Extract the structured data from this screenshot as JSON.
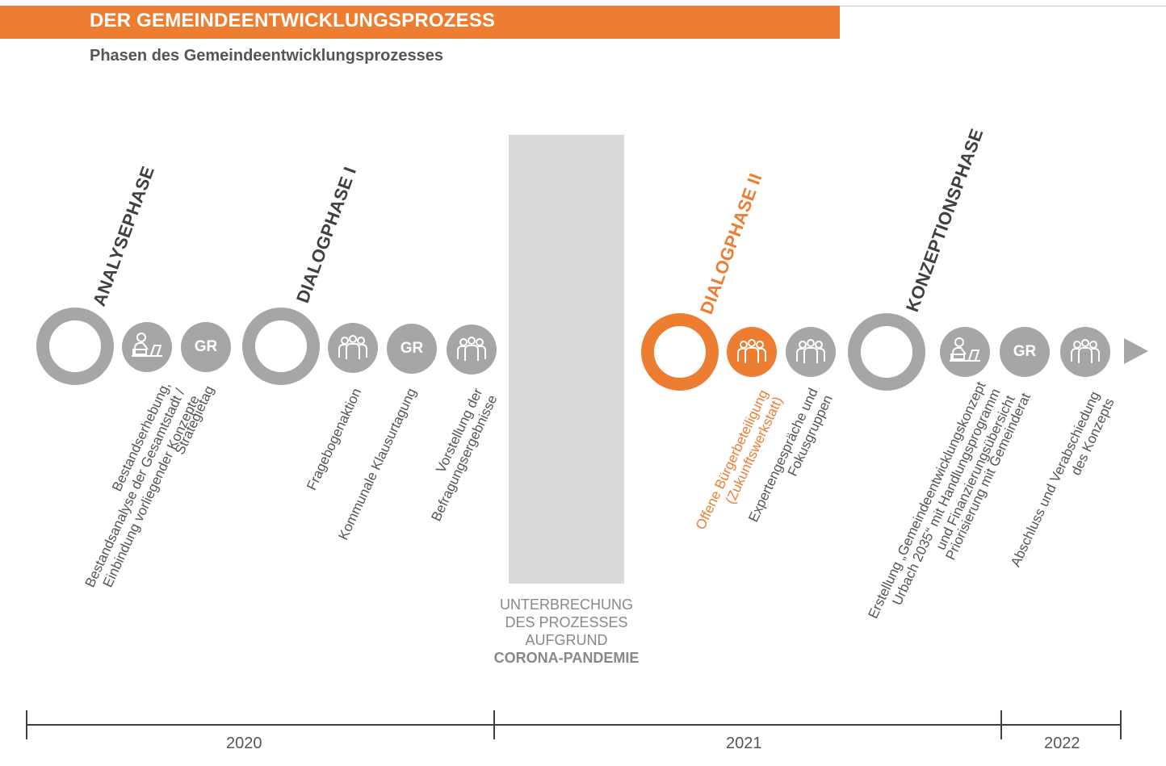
{
  "header": {
    "title": "DER GEMEINDEENTWICKLUNGSPROZESS",
    "subtitle": "Phasen des Gemeindeentwicklungsprozesses"
  },
  "colors": {
    "accent": "#ed7d31",
    "neutral": "#a6a6a6",
    "pause": "#d9d9d9"
  },
  "phases": [
    {
      "label": "ANALYSEPHASE",
      "highlight": false
    },
    {
      "label": "DIALOGPHASE I",
      "highlight": false
    },
    {
      "label": "DIALOGPHASE II",
      "highlight": true
    },
    {
      "label": "KONZEPTIONSPHASE",
      "highlight": false
    }
  ],
  "steps": [
    {
      "icon": "desk-worker-icon",
      "lines": [
        "Bestandserhebung,",
        "Bestandsanalyse der Gesamtstadt /",
        "Einbindung vorliegender Konzepte"
      ]
    },
    {
      "icon": "GR",
      "lines": [
        "Strategietag"
      ]
    },
    {
      "icon": "group-icon",
      "lines": [
        "Fragebogenaktion"
      ]
    },
    {
      "icon": "GR",
      "lines": [
        "Kommunale Klausurtagung"
      ]
    },
    {
      "icon": "group-icon",
      "lines": [
        "Vorstellung  der",
        "Befragungsergebnisse"
      ]
    },
    {
      "icon": "group-icon",
      "lines": [
        "Offene Bürgerbeteiligung",
        "(Zukunftswerkstatt)"
      ],
      "highlight": true
    },
    {
      "icon": "group-icon",
      "lines": [
        "Expertengespräche und",
        "Fokusgruppen"
      ]
    },
    {
      "icon": "desk-worker-icon",
      "lines": [
        "Erstellung „Gemeindeentwicklungskonzept",
        "Urbach 2035“ mit Handlungsprogramm",
        "und Finanzierungsübersicht"
      ]
    },
    {
      "icon": "GR",
      "lines": [
        "Priorisierung mit Gemeinderat"
      ]
    },
    {
      "icon": "group-icon",
      "lines": [
        "Abschluss und Verabschiedung",
        "des Konzepts"
      ]
    }
  ],
  "pause": {
    "lines": [
      "UNTERBRECHUNG",
      "DES PROZESSES",
      "AUFGRUND"
    ],
    "bold": "CORONA-PANDEMIE"
  },
  "timeline": {
    "years": [
      "2020",
      "2021",
      "2022"
    ]
  }
}
